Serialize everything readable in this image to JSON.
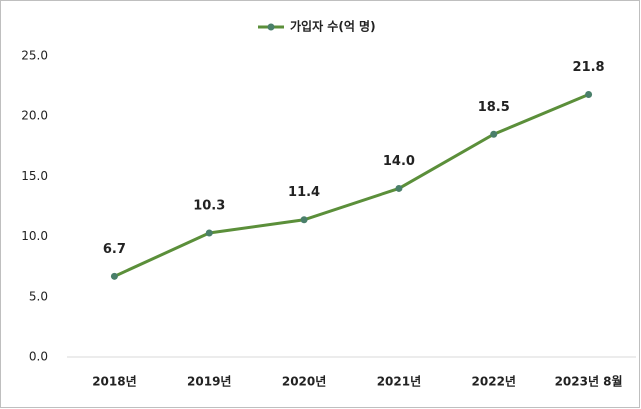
{
  "chart_data": {
    "type": "line",
    "categories": [
      "2018년",
      "2019년",
      "2020년",
      "2021년",
      "2022년",
      "2023년 8월"
    ],
    "series": [
      {
        "name": "가입자 수(억 명)",
        "color": "#5b8f3a",
        "marker_color": "#4a7f6a",
        "values": [
          6.7,
          10.3,
          11.4,
          14.0,
          18.5,
          21.8
        ],
        "value_labels": [
          "6.7",
          "10.3",
          "11.4",
          "14.0",
          "18.5",
          "21.8"
        ]
      }
    ],
    "ylim": [
      0,
      25
    ],
    "yticks": [
      {
        "value": 0,
        "label": "0.0"
      },
      {
        "value": 5,
        "label": "5.0"
      },
      {
        "value": 10,
        "label": "10.0"
      },
      {
        "value": 15,
        "label": "15.0"
      },
      {
        "value": 20,
        "label": "20.0"
      },
      {
        "value": 25,
        "label": "25.0"
      }
    ],
    "grid": false,
    "legend": "top"
  }
}
